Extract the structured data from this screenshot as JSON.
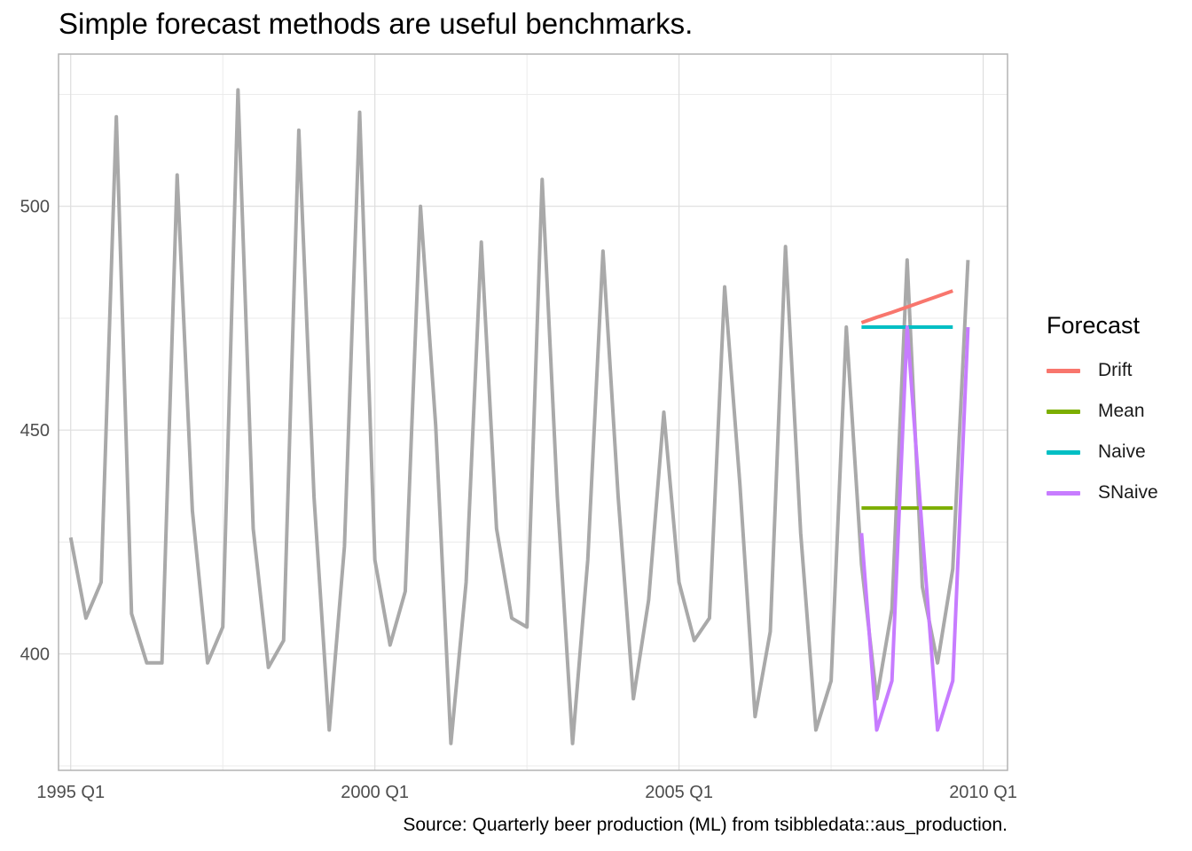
{
  "chart_data": {
    "type": "line",
    "title": "Simple forecast methods are useful benchmarks.",
    "caption": "Source: Quarterly beer production (ML) from tsibbledata::aus_production.",
    "xlabel": "",
    "ylabel": "",
    "xlim": [
      1994.8,
      2010.4
    ],
    "ylim": [
      374,
      534
    ],
    "x_ticks": [
      {
        "value": 1995,
        "label": "1995 Q1"
      },
      {
        "value": 2000,
        "label": "2000 Q1"
      },
      {
        "value": 2005,
        "label": "2005 Q1"
      },
      {
        "value": 2010,
        "label": "2010 Q1"
      }
    ],
    "y_ticks": [
      {
        "value": 400,
        "label": "400"
      },
      {
        "value": 450,
        "label": "450"
      },
      {
        "value": 500,
        "label": "500"
      }
    ],
    "grid": true,
    "legend": {
      "title": "Forecast",
      "position": "right"
    },
    "x_start": 1995,
    "x_step": 0.25,
    "observed": {
      "color": "#a9a9a9",
      "values": [
        426,
        408,
        416,
        520,
        409,
        398,
        398,
        507,
        432,
        398,
        406,
        526,
        428,
        397,
        403,
        517,
        435,
        383,
        424,
        521,
        421,
        402,
        414,
        500,
        451,
        380,
        416,
        492,
        428,
        408,
        406,
        506,
        435,
        380,
        421,
        490,
        435,
        390,
        412,
        454,
        416,
        403,
        408,
        482,
        438,
        386,
        405,
        491,
        427,
        383,
        394,
        473,
        420,
        390,
        410,
        488,
        415,
        398,
        419,
        488
      ]
    },
    "series": [
      {
        "name": "Drift",
        "color": "#f8766d",
        "x_start": 2008,
        "values": [
          474,
          475.2,
          476.3,
          477.5,
          478.7,
          479.9,
          481.1
        ]
      },
      {
        "name": "Mean",
        "color": "#7cae00",
        "x_start": 2008,
        "values": [
          432.6,
          432.6,
          432.6,
          432.6,
          432.6,
          432.6,
          432.6
        ]
      },
      {
        "name": "Naive",
        "color": "#00bfc4",
        "x_start": 2008,
        "values": [
          473,
          473,
          473,
          473,
          473,
          473,
          473
        ]
      },
      {
        "name": "SNaive",
        "color": "#c77cff",
        "x_start": 2008,
        "values": [
          427,
          383,
          394,
          473,
          427,
          383,
          394,
          473
        ]
      }
    ]
  }
}
